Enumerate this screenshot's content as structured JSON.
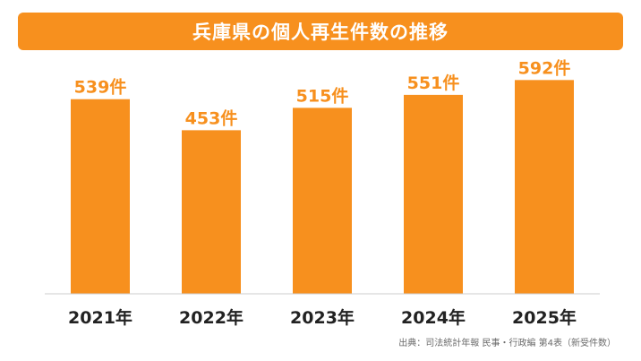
{
  "title": "兵庫県の個人再生件数の推移",
  "source": "出典：司法統計年報 民事・行政編 第4表（新受件数）",
  "colors": {
    "accent": "#F7901E",
    "axis": "#cccccc",
    "category_text": "#222222"
  },
  "chart_data": {
    "type": "bar",
    "categories": [
      "2021年",
      "2022年",
      "2023年",
      "2024年",
      "2025年"
    ],
    "values": [
      539,
      453,
      515,
      551,
      592
    ],
    "value_labels": [
      "539件",
      "453件",
      "515件",
      "551件",
      "592件"
    ],
    "ylim": [
      0,
      640
    ],
    "grid": false,
    "legend": "none"
  }
}
